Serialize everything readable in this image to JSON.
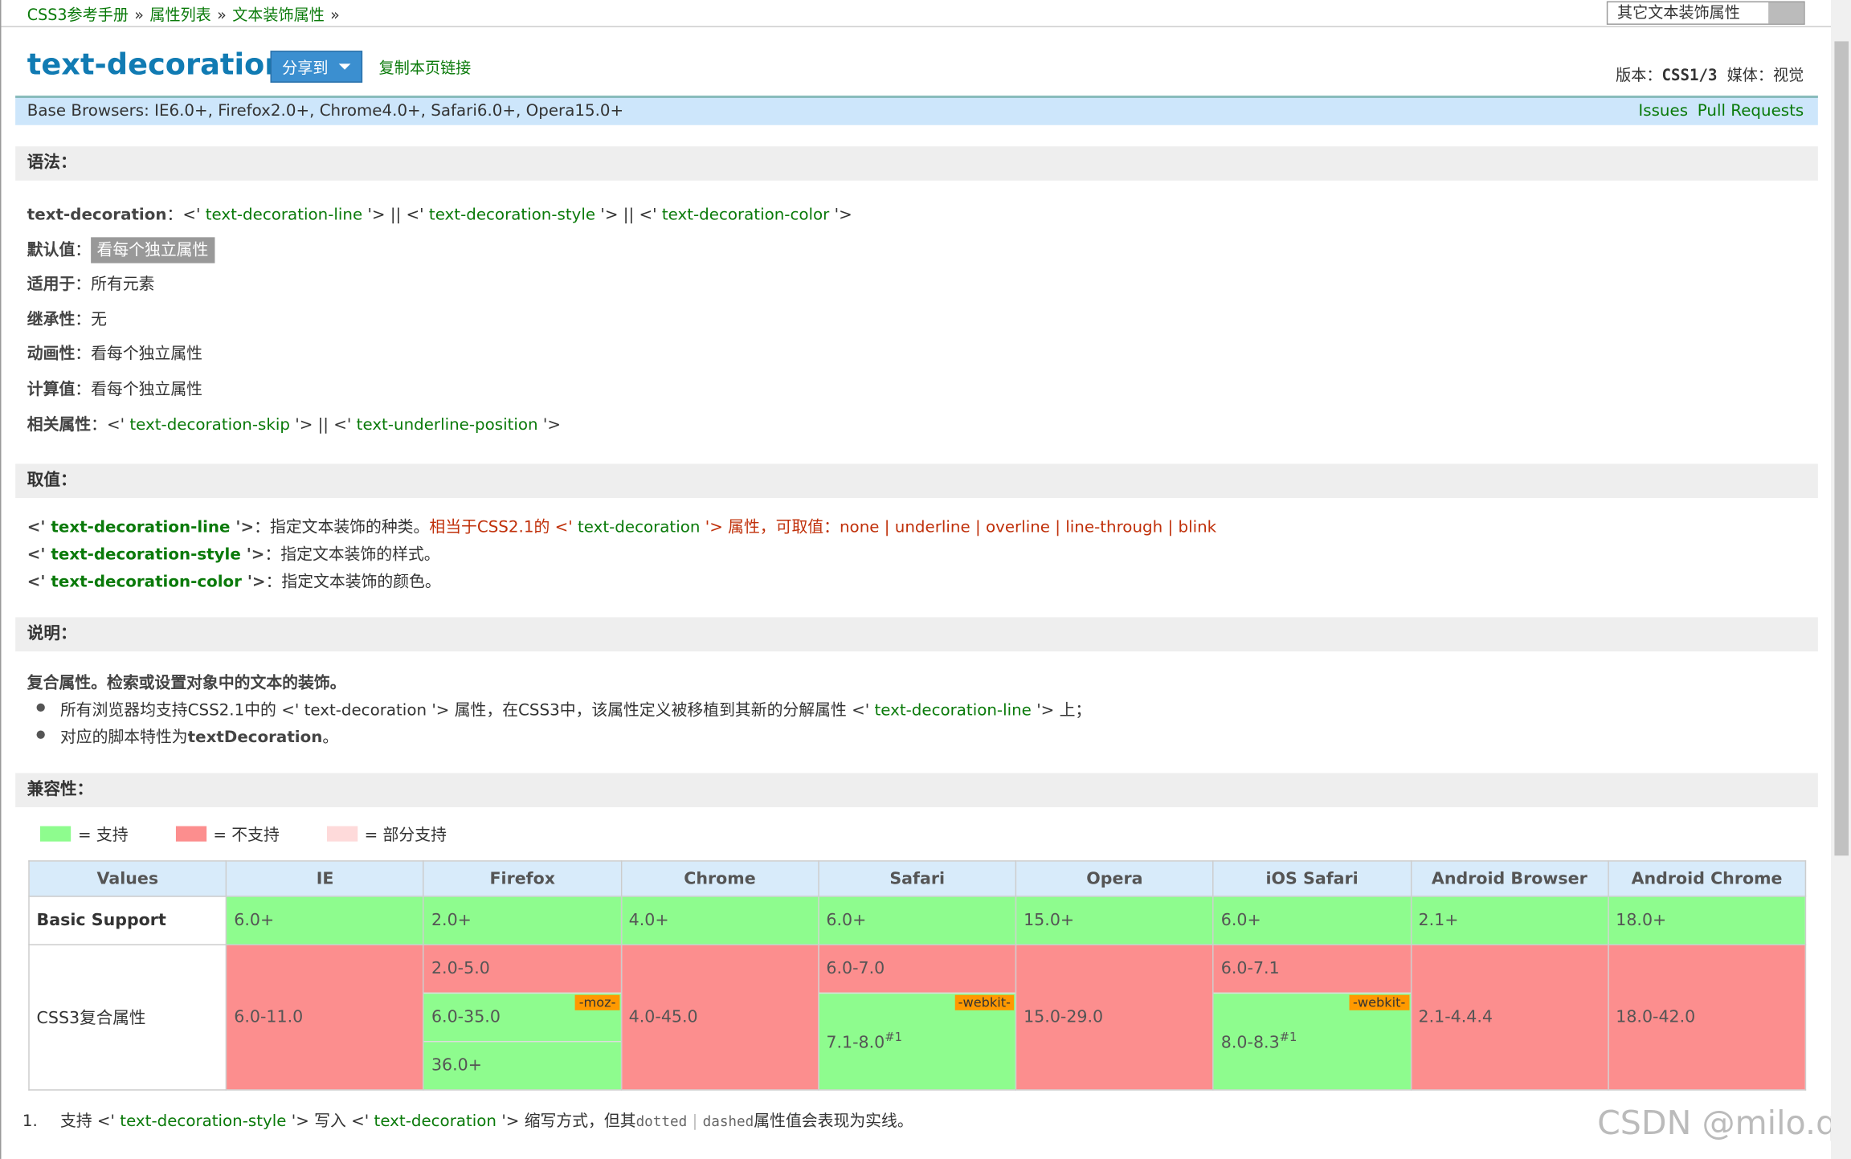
{
  "breadcrumb": {
    "items": [
      "CSS3参考手册",
      "属性列表",
      "文本装饰属性"
    ],
    "separator": "»"
  },
  "related_select": "其它文本装饰属性",
  "header": {
    "title": "text-decoration",
    "share": "分享到",
    "copy_link": "复制本页链接",
    "version_label": "版本：",
    "version": "CSS1/3",
    "media_label": "媒体：",
    "media": "视觉"
  },
  "browsers_bar": {
    "text": "Base Browsers: IE6.0+, Firefox2.0+, Chrome4.0+, Safari6.0+, Opera15.0+",
    "links": [
      "Issues",
      "Pull Requests"
    ]
  },
  "syntax": {
    "heading": "语法：",
    "lines": [
      [
        {
          "text": "text-decoration",
          "style": "bold"
        },
        {
          "text": "：<' ",
          "style": "plain"
        },
        {
          "text": "text-decoration-line",
          "style": "green"
        },
        {
          "text": " '> || <' ",
          "style": "plain"
        },
        {
          "text": "text-decoration-style",
          "style": "green"
        },
        {
          "text": " '> || <' ",
          "style": "plain"
        },
        {
          "text": "text-decoration-color",
          "style": "green"
        },
        {
          "text": " '>",
          "style": "plain"
        }
      ],
      [
        {
          "text": "默认值",
          "style": "bold"
        },
        {
          "text": "：",
          "style": "plain"
        },
        {
          "text": "看每个独立属性",
          "style": "tag"
        }
      ],
      [
        {
          "text": "适用于",
          "style": "bold"
        },
        {
          "text": "：所有元素",
          "style": "plain"
        }
      ],
      [
        {
          "text": "继承性",
          "style": "bold"
        },
        {
          "text": "：无",
          "style": "plain"
        }
      ],
      [
        {
          "text": "动画性",
          "style": "bold"
        },
        {
          "text": "：看每个独立属性",
          "style": "plain"
        }
      ],
      [
        {
          "text": "计算值",
          "style": "bold"
        },
        {
          "text": "：看每个独立属性",
          "style": "plain"
        }
      ],
      [
        {
          "text": "相关属性",
          "style": "bold"
        },
        {
          "text": "：<' ",
          "style": "plain"
        },
        {
          "text": "text-decoration-skip",
          "style": "green"
        },
        {
          "text": " '> || <' ",
          "style": "plain"
        },
        {
          "text": "text-underline-position",
          "style": "green"
        },
        {
          "text": " '>",
          "style": "plain"
        }
      ]
    ]
  },
  "values": {
    "heading": "取值：",
    "lines": [
      [
        {
          "text": "<' ",
          "style": "bold"
        },
        {
          "text": "text-decoration-line",
          "style": "green-bold"
        },
        {
          "text": " '>",
          "style": "bold"
        },
        {
          "text": "：指定文本装饰的种类。",
          "style": "plain"
        },
        {
          "text": "相当于CSS2.1的 <' ",
          "style": "red"
        },
        {
          "text": "text-decoration",
          "style": "green"
        },
        {
          "text": " '> 属性，可取值：none | underline | overline | line-through | blink",
          "style": "red"
        }
      ],
      [
        {
          "text": "<' ",
          "style": "bold"
        },
        {
          "text": "text-decoration-style",
          "style": "green-bold"
        },
        {
          "text": " '>",
          "style": "bold"
        },
        {
          "text": "：指定文本装饰的样式。",
          "style": "plain"
        }
      ],
      [
        {
          "text": "<' ",
          "style": "bold"
        },
        {
          "text": "text-decoration-color",
          "style": "green-bold"
        },
        {
          "text": " '>",
          "style": "bold"
        },
        {
          "text": "：指定文本装饰的颜色。",
          "style": "plain"
        }
      ]
    ]
  },
  "description": {
    "heading": "说明：",
    "lead": "复合属性。检索或设置对象中的文本的装饰。",
    "bullets": [
      [
        {
          "text": "所有浏览器均支持CSS2.1中的 <' text-decoration '> 属性，在CSS3中，该属性定义被移植到其新的分解属性 <' ",
          "style": "plain"
        },
        {
          "text": "text-decoration-line",
          "style": "green"
        },
        {
          "text": " '> 上；",
          "style": "plain"
        }
      ],
      [
        {
          "text": "对应的脚本特性为",
          "style": "plain"
        },
        {
          "text": "textDecoration",
          "style": "bold"
        },
        {
          "text": "。",
          "style": "plain"
        }
      ]
    ]
  },
  "compatibility": {
    "heading": "兼容性：",
    "legend": [
      {
        "label": "= 支持",
        "color": "#8efc8e"
      },
      {
        "label": "= 不支持",
        "color": "#fc8e8e"
      },
      {
        "label": "= 部分支持",
        "color": "#fedada"
      }
    ],
    "table": {
      "columns": [
        "Values",
        "IE",
        "Firefox",
        "Chrome",
        "Safari",
        "Opera",
        "iOS Safari",
        "Android Browser",
        "Android Chrome"
      ],
      "rows": [
        {
          "name": "Basic Support",
          "cells": [
            [
              {
                "text": "6.0+",
                "support": "yes"
              }
            ],
            [
              {
                "text": "2.0+",
                "support": "yes"
              }
            ],
            [
              {
                "text": "4.0+",
                "support": "yes"
              }
            ],
            [
              {
                "text": "6.0+",
                "support": "yes"
              }
            ],
            [
              {
                "text": "15.0+",
                "support": "yes"
              }
            ],
            [
              {
                "text": "6.0+",
                "support": "yes"
              }
            ],
            [
              {
                "text": "2.1+",
                "support": "yes"
              }
            ],
            [
              {
                "text": "18.0+",
                "support": "yes"
              }
            ]
          ]
        },
        {
          "name": "CSS3复合属性",
          "cells": [
            [
              {
                "text": "6.0-11.0",
                "support": "no"
              }
            ],
            [
              {
                "text": "2.0-5.0",
                "support": "no"
              },
              {
                "text": "6.0-35.0",
                "support": "yes",
                "prefix": "-moz-"
              },
              {
                "text": "36.0+",
                "support": "yes"
              }
            ],
            [
              {
                "text": "4.0-45.0",
                "support": "no"
              }
            ],
            [
              {
                "text": "6.0-7.0",
                "support": "no"
              },
              {
                "text": "7.1-8.0",
                "support": "yes",
                "prefix": "-webkit-",
                "note": "#1"
              }
            ],
            [
              {
                "text": "15.0-29.0",
                "support": "no"
              }
            ],
            [
              {
                "text": "6.0-7.1",
                "support": "no"
              },
              {
                "text": "8.0-8.3",
                "support": "yes",
                "prefix": "-webkit-",
                "note": "#1"
              }
            ],
            [
              {
                "text": "2.1-4.4.4",
                "support": "no"
              }
            ],
            [
              {
                "text": "18.0-42.0",
                "support": "no"
              }
            ]
          ]
        }
      ]
    }
  },
  "footnotes": [
    {
      "number": "1.",
      "segments": [
        {
          "text": "支持 <' ",
          "style": "plain"
        },
        {
          "text": "text-decoration-style",
          "style": "green"
        },
        {
          "text": " '> 写入 <' ",
          "style": "plain"
        },
        {
          "text": "text-decoration",
          "style": "green"
        },
        {
          "text": " '> 缩写方式，但其",
          "style": "plain"
        },
        {
          "text": "dotted",
          "style": "mono"
        },
        {
          "text": " | ",
          "style": "sep"
        },
        {
          "text": "dashed",
          "style": "mono"
        },
        {
          "text": "属性值会表现为实线。",
          "style": "plain"
        }
      ]
    }
  ],
  "watermark": "CSDN @milo.qu"
}
